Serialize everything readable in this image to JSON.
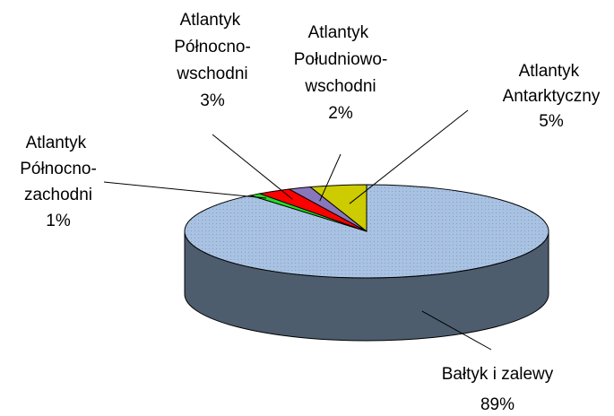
{
  "chart_data": {
    "type": "pie",
    "categories": [
      "Bałtyk i zalewy",
      "Atlantyk Północno-zachodni",
      "Atlantyk Północno-wschodni",
      "Atlantyk Południowo-wschodni",
      "Atlantyk Antarktyczny"
    ],
    "values": [
      89,
      1,
      3,
      2,
      5
    ],
    "value_labels": [
      "89%",
      "1%",
      "3%",
      "2%",
      "5%"
    ],
    "colors": [
      "#a9c2e2",
      "#22dd22",
      "#ff0000",
      "#8877bb",
      "#cccc00"
    ]
  }
}
